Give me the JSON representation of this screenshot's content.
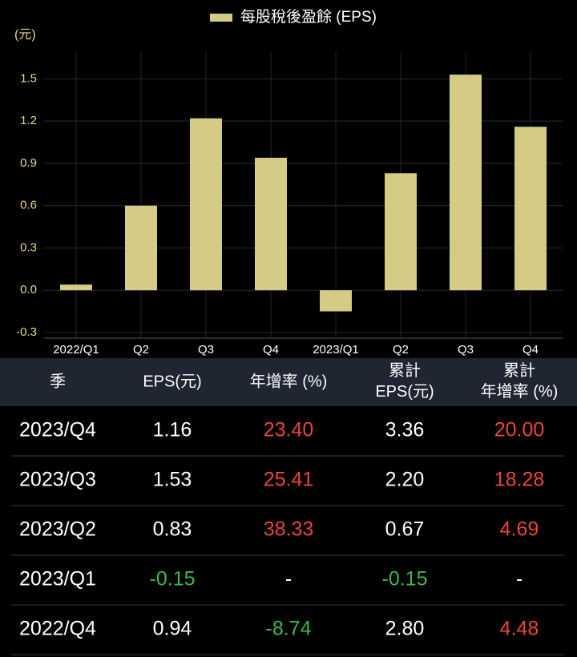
{
  "chart_data": {
    "type": "bar",
    "legend": "每股稅後盈餘 (EPS)",
    "y_label": "(元)",
    "categories": [
      "2022/Q1",
      "Q2",
      "Q3",
      "Q4",
      "2023/Q1",
      "Q2",
      "Q3",
      "Q4"
    ],
    "values": [
      0.04,
      0.6,
      1.22,
      0.94,
      -0.15,
      0.83,
      1.53,
      1.16
    ],
    "color": "#d4cc84",
    "ylim": [
      -0.34,
      1.69
    ],
    "yticks": [
      -0.3,
      {
        "value": 0,
        "label": "0.0"
      },
      0.3,
      0.6,
      0.9,
      1.2,
      1.5
    ],
    "grid": true
  },
  "table": {
    "header": [
      "季",
      "EPS(元)",
      "年增率 (%)",
      "累計\nEPS(元)",
      "累計\n年增率 (%)"
    ],
    "growth_columns": [
      2,
      4
    ],
    "up_color": "#e8463b",
    "down_color": "#3db84a",
    "rows": [
      [
        "2023/Q4",
        "1.16",
        "23.40",
        "3.36",
        "20.00"
      ],
      [
        "2023/Q3",
        "1.53",
        "25.41",
        "2.20",
        "18.28"
      ],
      [
        "2023/Q2",
        "0.83",
        "38.33",
        "0.67",
        "4.69"
      ],
      [
        "2023/Q1",
        "-0.15",
        "-",
        "-0.15",
        "-"
      ],
      [
        "2022/Q4",
        "0.94",
        "-8.74",
        "2.80",
        "4.48"
      ]
    ]
  }
}
